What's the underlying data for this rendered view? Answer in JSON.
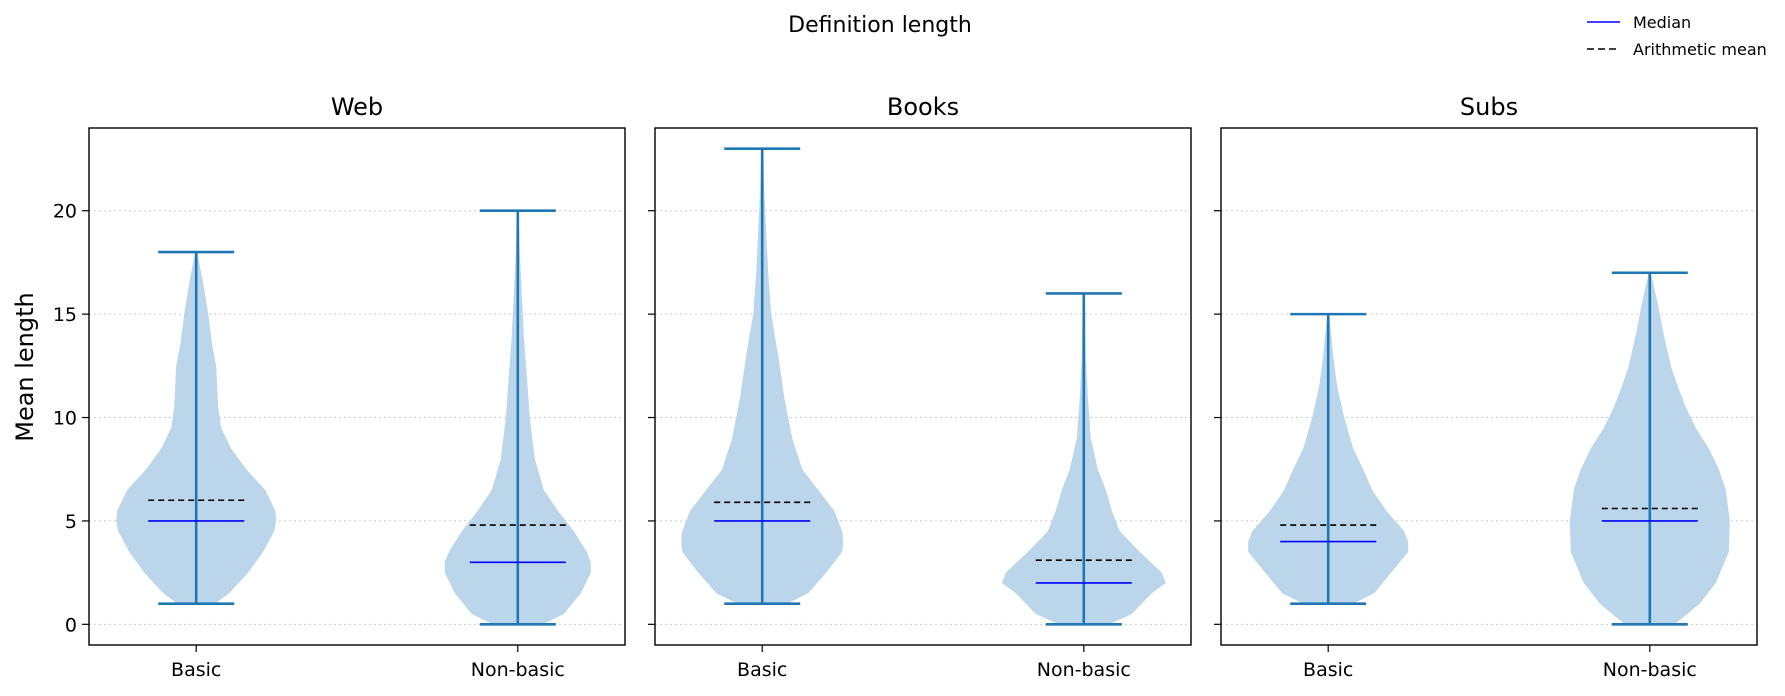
{
  "figure": {
    "title": "Definition length",
    "ylabel": "Mean length"
  },
  "legend": {
    "items": [
      {
        "label": "Median",
        "style": "solid",
        "color": "#0000ff"
      },
      {
        "label": "Arithmetic mean",
        "style": "dashed",
        "color": "#000000"
      }
    ]
  },
  "colors": {
    "violin_fill": "#bbd6ea",
    "whisker": "#1f77b4",
    "median": "#0000ff",
    "mean": "#000000",
    "grid": "#cccccc"
  },
  "chart_data": {
    "type": "violin",
    "ylim": [
      -1,
      24
    ],
    "yticks": [
      0,
      5,
      10,
      15,
      20
    ],
    "grid": "y-dotted",
    "legend_position": "top-right",
    "panels": [
      {
        "title": "Web",
        "categories": [
          "Basic",
          "Non-basic"
        ],
        "violins": [
          {
            "category": "Basic",
            "min": 1,
            "max": 18,
            "median": 5,
            "mean": 6.0,
            "profile": [
              [
                1,
                19
              ],
              [
                1.5,
                33
              ],
              [
                2.5,
                52
              ],
              [
                3.5,
                67
              ],
              [
                4.5,
                78
              ],
              [
                5,
                80
              ],
              [
                5.5,
                79
              ],
              [
                6.5,
                69
              ],
              [
                7.5,
                50
              ],
              [
                8.5,
                35
              ],
              [
                9.5,
                25
              ],
              [
                10.5,
                22
              ],
              [
                11.5,
                21
              ],
              [
                12.5,
                20
              ],
              [
                13.5,
                16
              ],
              [
                15,
                12
              ],
              [
                16.5,
                7
              ],
              [
                17.5,
                3
              ],
              [
                18,
                1
              ]
            ]
          },
          {
            "category": "Non-basic",
            "min": 0,
            "max": 20,
            "median": 3,
            "mean": 4.8,
            "profile": [
              [
                0,
                25
              ],
              [
                0.5,
                46
              ],
              [
                1.5,
                63
              ],
              [
                2.5,
                73
              ],
              [
                3,
                73
              ],
              [
                3.5,
                69
              ],
              [
                4.5,
                56
              ],
              [
                5.5,
                40
              ],
              [
                6.5,
                26
              ],
              [
                8,
                17
              ],
              [
                10,
                12
              ],
              [
                12,
                9
              ],
              [
                14,
                6
              ],
              [
                16,
                4
              ],
              [
                18,
                2
              ],
              [
                20,
                1
              ]
            ]
          }
        ]
      },
      {
        "title": "Books",
        "categories": [
          "Basic",
          "Non-basic"
        ],
        "violins": [
          {
            "category": "Basic",
            "min": 1,
            "max": 23,
            "median": 5,
            "mean": 5.9,
            "profile": [
              [
                1,
                25
              ],
              [
                1.5,
                46
              ],
              [
                2.5,
                64
              ],
              [
                3.5,
                80
              ],
              [
                4,
                81
              ],
              [
                4.5,
                80
              ],
              [
                5.5,
                72
              ],
              [
                6.5,
                56
              ],
              [
                7.5,
                40
              ],
              [
                9,
                30
              ],
              [
                11,
                22
              ],
              [
                13,
                16
              ],
              [
                15,
                9
              ],
              [
                17,
                6
              ],
              [
                19,
                4
              ],
              [
                21,
                2
              ],
              [
                23,
                1
              ]
            ]
          },
          {
            "category": "Non-basic",
            "min": 0,
            "max": 16,
            "median": 2,
            "mean": 3.1,
            "profile": [
              [
                0,
                25
              ],
              [
                0.5,
                48
              ],
              [
                1.5,
                68
              ],
              [
                2,
                82
              ],
              [
                2.5,
                78
              ],
              [
                3.5,
                56
              ],
              [
                4.5,
                36
              ],
              [
                5.5,
                28
              ],
              [
                6.5,
                22
              ],
              [
                7.5,
                14
              ],
              [
                9,
                7
              ],
              [
                11,
                4
              ],
              [
                13,
                2
              ],
              [
                16,
                1
              ]
            ]
          }
        ]
      },
      {
        "title": "Subs",
        "categories": [
          "Basic",
          "Non-basic"
        ],
        "violins": [
          {
            "category": "Basic",
            "min": 1,
            "max": 15,
            "median": 4,
            "mean": 4.8,
            "profile": [
              [
                1,
                25
              ],
              [
                1.5,
                46
              ],
              [
                2.5,
                63
              ],
              [
                3.5,
                80
              ],
              [
                4,
                80
              ],
              [
                4.5,
                76
              ],
              [
                5.5,
                58
              ],
              [
                6.5,
                44
              ],
              [
                7.5,
                35
              ],
              [
                8.5,
                25
              ],
              [
                10,
                16
              ],
              [
                11.5,
                9
              ],
              [
                13,
                5
              ],
              [
                14.5,
                2
              ],
              [
                15,
                1
              ]
            ]
          },
          {
            "category": "Non-basic",
            "min": 0,
            "max": 17,
            "median": 5,
            "mean": 5.6,
            "profile": [
              [
                0,
                25
              ],
              [
                1,
                50
              ],
              [
                2,
                66
              ],
              [
                3.5,
                79
              ],
              [
                5,
                80
              ],
              [
                6.5,
                76
              ],
              [
                7.5,
                69
              ],
              [
                8.5,
                59
              ],
              [
                9.5,
                46
              ],
              [
                10.5,
                36
              ],
              [
                11.5,
                28
              ],
              [
                12.5,
                21
              ],
              [
                14,
                14
              ],
              [
                15.5,
                8
              ],
              [
                17,
                1
              ]
            ]
          }
        ]
      }
    ]
  }
}
